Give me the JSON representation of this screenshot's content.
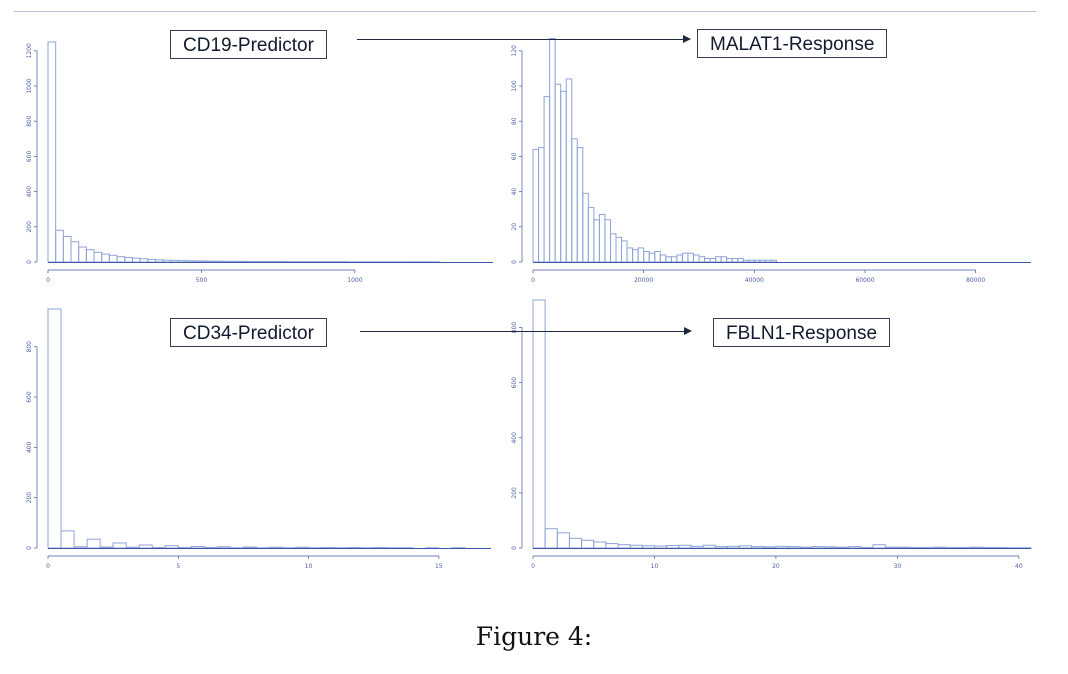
{
  "figure": {
    "caption": "Figure 4:",
    "colors": {
      "bar_stroke": "#8ea3d9",
      "axis": "#3f56a8",
      "tick_text": "#4b5fa8",
      "box_border": "#333c57"
    },
    "labels": {
      "cd19": "CD19-Predictor",
      "malat1": "MALAT1-Response",
      "cd34": "CD34-Predictor",
      "fbln1": "FBLN1-Response"
    }
  },
  "chart_data": [
    {
      "type": "bar",
      "name_label": "CD19-Predictor",
      "xlim": [
        0,
        1450
      ],
      "ylim": [
        0,
        1250
      ],
      "x_ticks": [
        "0",
        "500",
        "1000"
      ],
      "y_ticks": [
        "0",
        "200",
        "400",
        "600",
        "800",
        "1000",
        "1200"
      ],
      "bin_width": 25,
      "values": [
        1250,
        180,
        145,
        115,
        85,
        70,
        55,
        45,
        38,
        30,
        26,
        22,
        18,
        15,
        12,
        10,
        9,
        8,
        7,
        6,
        6,
        5,
        5,
        4,
        4,
        4,
        3,
        3,
        3,
        3,
        3,
        2,
        2,
        2,
        2,
        2,
        2,
        2,
        2,
        1,
        1,
        1,
        1,
        1,
        1,
        1,
        1,
        1,
        1,
        1,
        1,
        0,
        0,
        0,
        0,
        0,
        0,
        0
      ]
    },
    {
      "type": "bar",
      "name_label": "MALAT1-Response",
      "xlim": [
        0,
        90000
      ],
      "ylim": [
        0,
        125
      ],
      "x_ticks": [
        "0",
        "20000",
        "40000",
        "60000",
        "80000"
      ],
      "y_ticks": [
        "0",
        "20",
        "40",
        "60",
        "80",
        "100",
        "120"
      ],
      "bin_width": 1000,
      "values": [
        64,
        65,
        94,
        127,
        101,
        97,
        104,
        70,
        65,
        39,
        31,
        24,
        27,
        24,
        16,
        14,
        12,
        8,
        7,
        8,
        6,
        5,
        6,
        4,
        3,
        3,
        4,
        5,
        5,
        4,
        3,
        2,
        2,
        3,
        3,
        2,
        2,
        2,
        1,
        1,
        1,
        1,
        1,
        1
      ]
    },
    {
      "type": "bar",
      "name_label": "CD34-Predictor",
      "xlim": [
        0,
        17
      ],
      "ylim": [
        0,
        950
      ],
      "x_ticks": [
        "0",
        "5",
        "10",
        "15"
      ],
      "y_ticks": [
        "0",
        "200",
        "400",
        "600",
        "800"
      ],
      "bin_width": 0.5,
      "values": [
        950,
        68,
        5,
        35,
        4,
        20,
        3,
        12,
        2,
        9,
        2,
        6,
        2,
        5,
        1,
        4,
        1,
        3,
        1,
        3,
        1,
        2,
        1,
        2,
        1,
        2,
        1,
        1,
        0,
        1,
        0,
        1,
        0,
        0
      ]
    },
    {
      "type": "bar",
      "name_label": "FBLN1-Response",
      "xlim": [
        0,
        41
      ],
      "ylim": [
        0,
        900
      ],
      "x_ticks": [
        "0",
        "10",
        "20",
        "30",
        "40"
      ],
      "y_ticks": [
        "0",
        "200",
        "400",
        "600",
        "800"
      ],
      "bin_width": 1,
      "values": [
        900,
        70,
        55,
        35,
        28,
        22,
        16,
        12,
        10,
        8,
        7,
        9,
        10,
        6,
        10,
        5,
        6,
        8,
        5,
        4,
        6,
        5,
        3,
        5,
        4,
        3,
        5,
        2,
        12,
        3,
        3,
        2,
        2,
        3,
        2,
        2,
        3,
        2,
        2,
        1,
        1
      ]
    }
  ]
}
